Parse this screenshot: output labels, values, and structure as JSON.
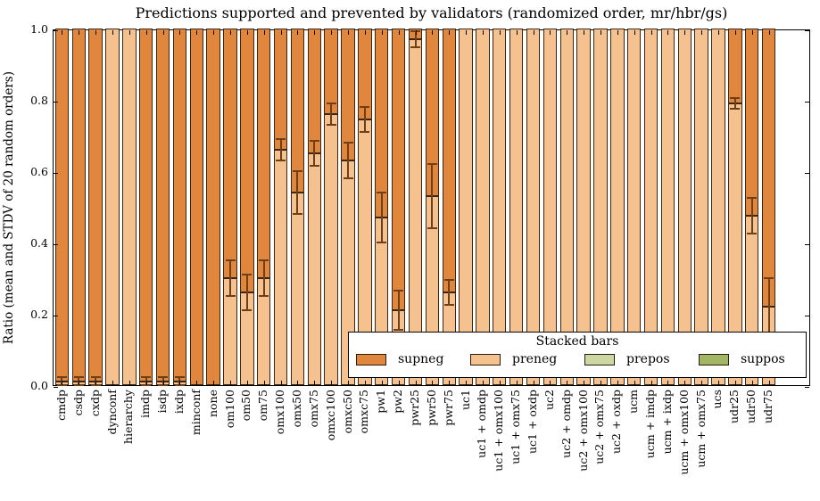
{
  "chart_data": {
    "type": "bar",
    "subtype": "stacked-vertical-with-error-bars",
    "title": "Predictions supported and prevented by validators (randomized order, mr/hbr/gs)",
    "ylabel": "Ratio (mean and STDV of 20 random orders)",
    "xlabel": "",
    "ylim": [
      0.0,
      1.0
    ],
    "ytick_labels": [
      "0.0",
      "0.2",
      "0.4",
      "0.6",
      "0.8",
      "1.0"
    ],
    "ytick_values": [
      0.0,
      0.2,
      0.4,
      0.6,
      0.8,
      1.0
    ],
    "grid": false,
    "legend": {
      "title": "Stacked bars",
      "position": "lower-right-inside"
    },
    "categories": [
      "cmdp",
      "csdp",
      "cxdp",
      "dynconf",
      "hierarchy",
      "imdp",
      "isdp",
      "ixdp",
      "minconf",
      "none",
      "om100",
      "om50",
      "om75",
      "omx100",
      "omx50",
      "omx75",
      "omxc100",
      "omxc50",
      "omxc75",
      "pw1",
      "pw2",
      "pwr25",
      "pwr50",
      "pwr75",
      "uc1",
      "uc1 + omdp",
      "uc1 + omx100",
      "uc1 + omx75",
      "uc1 + oxdp",
      "uc2",
      "uc2 + omdp",
      "uc2 + omx100",
      "uc2 + omx75",
      "uc2 + oxdp",
      "ucm",
      "ucm + imdp",
      "ucm + ixdp",
      "ucm + omx100",
      "ucm + omx75",
      "ucs",
      "udr25",
      "udr50",
      "udr75"
    ],
    "series": [
      {
        "name": "supneg",
        "color": "#e1873d",
        "stack_position": "top",
        "values": [
          0.99,
          0.99,
          0.99,
          0.0,
          0.0,
          0.99,
          0.99,
          0.99,
          1.0,
          1.0,
          0.7,
          0.74,
          0.7,
          0.34,
          0.46,
          0.35,
          0.24,
          0.37,
          0.255,
          0.53,
          0.79,
          0.03,
          0.47,
          0.74,
          0.0,
          0.0,
          0.0,
          0.0,
          0.0,
          0.0,
          0.0,
          0.0,
          0.0,
          0.0,
          0.0,
          0.0,
          0.0,
          0.0,
          0.0,
          0.0,
          0.21,
          0.525,
          0.78
        ]
      },
      {
        "name": "preneg",
        "color": "#f5c28f",
        "stack_position": "bottom",
        "values": [
          0.01,
          0.01,
          0.01,
          1.0,
          1.0,
          0.01,
          0.01,
          0.01,
          0.0,
          0.0,
          0.3,
          0.26,
          0.3,
          0.66,
          0.54,
          0.65,
          0.76,
          0.63,
          0.745,
          0.47,
          0.21,
          0.97,
          0.53,
          0.26,
          1.0,
          1.0,
          1.0,
          1.0,
          1.0,
          1.0,
          1.0,
          1.0,
          1.0,
          1.0,
          1.0,
          1.0,
          1.0,
          1.0,
          1.0,
          1.0,
          0.79,
          0.475,
          0.22
        ]
      },
      {
        "name": "prepos",
        "color": "#ccd7a4",
        "stack_position": "none-visible",
        "values": [
          0,
          0,
          0,
          0,
          0,
          0,
          0,
          0,
          0,
          0,
          0,
          0,
          0,
          0,
          0,
          0,
          0,
          0,
          0,
          0,
          0,
          0,
          0,
          0,
          0,
          0,
          0,
          0,
          0,
          0,
          0,
          0,
          0,
          0,
          0,
          0,
          0,
          0,
          0,
          0,
          0,
          0,
          0
        ]
      },
      {
        "name": "suppos",
        "color": "#a3b666",
        "stack_position": "none-visible",
        "values": [
          0,
          0,
          0,
          0,
          0,
          0,
          0,
          0,
          0,
          0,
          0,
          0,
          0,
          0,
          0,
          0,
          0,
          0,
          0,
          0,
          0,
          0,
          0,
          0,
          0,
          0,
          0,
          0,
          0,
          0,
          0,
          0,
          0,
          0,
          0,
          0,
          0,
          0,
          0,
          0,
          0,
          0,
          0
        ]
      }
    ],
    "error_bars": {
      "location": "preneg-supneg boundary (mean of preneg), caps at mean plus/minus STDV",
      "stdv": [
        0.012,
        0.012,
        0.012,
        0,
        0,
        0.012,
        0.012,
        0.012,
        0,
        0,
        0.05,
        0.05,
        0.05,
        0.03,
        0.06,
        0.035,
        0.03,
        0.05,
        0.035,
        0.07,
        0.055,
        0.022,
        0.09,
        0.035,
        0,
        0,
        0,
        0,
        0,
        0,
        0,
        0,
        0,
        0,
        0,
        0,
        0,
        0,
        0,
        0,
        0.015,
        0.05,
        0.08
      ]
    },
    "colors": {
      "bar_edge": "#3a2613",
      "error_bar": "#6f4018",
      "axis": "#000000",
      "background": "#ffffff"
    }
  }
}
